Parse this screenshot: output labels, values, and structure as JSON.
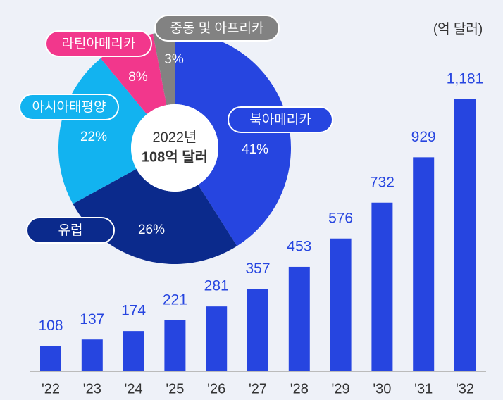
{
  "chart_data": [
    {
      "type": "bar",
      "unit_label": "(억 달러)",
      "categories": [
        "'22",
        "'23",
        "'24",
        "'25",
        "'26",
        "'27",
        "'28",
        "'29",
        "'30",
        "'31",
        "'32"
      ],
      "values": [
        108,
        137,
        174,
        221,
        281,
        357,
        453,
        576,
        732,
        929,
        1181
      ],
      "value_labels": [
        "108",
        "137",
        "174",
        "221",
        "281",
        "357",
        "453",
        "576",
        "732",
        "929",
        "1,181"
      ],
      "color": "#2645e0"
    },
    {
      "type": "donut",
      "center_text": [
        "2022년",
        "108억 달러"
      ],
      "categories": [
        "북아메리카",
        "유럽",
        "아시아태평양",
        "라틴아메리카",
        "중동 및 아프리카"
      ],
      "values": [
        41,
        26,
        22,
        8,
        3
      ],
      "value_labels": [
        "41%",
        "26%",
        "22%",
        "8%",
        "3%"
      ],
      "colors": [
        "#2645e0",
        "#0b2a8c",
        "#12b3f0",
        "#f2378c",
        "#828282"
      ]
    }
  ]
}
